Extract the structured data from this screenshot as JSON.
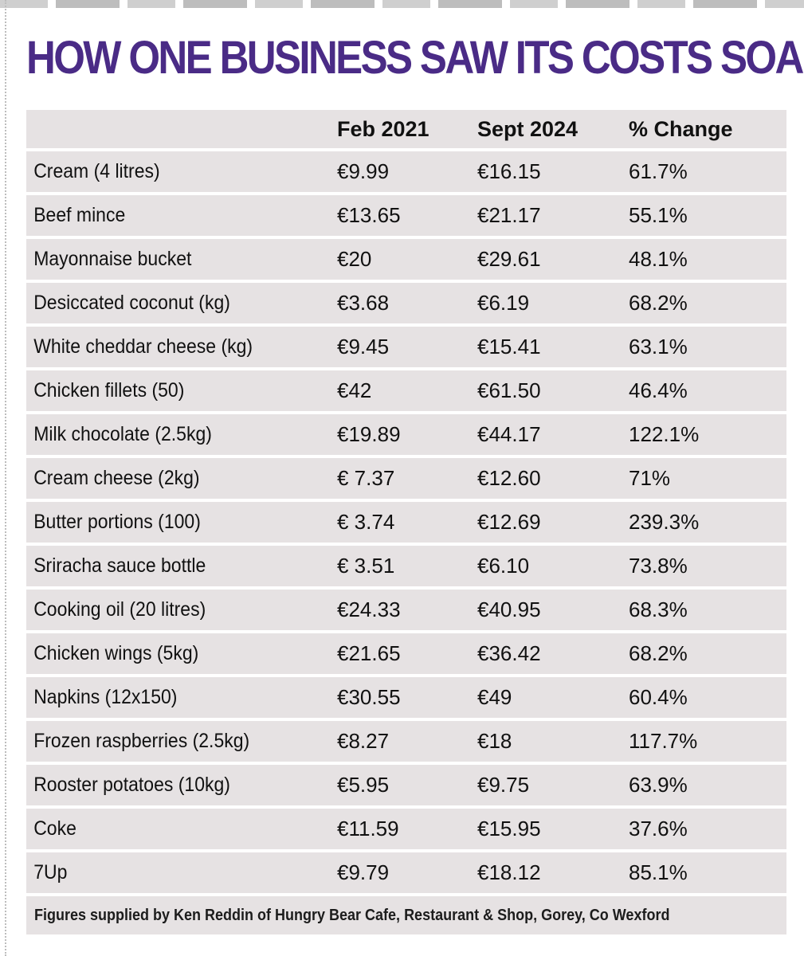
{
  "headline": "HOW ONE BUSINESS SAW ITS COSTS SOAR",
  "columns": {
    "item": "",
    "feb": "Feb 2021",
    "sept": "Sept 2024",
    "change": "% Change"
  },
  "rows": [
    {
      "item": "Cream (4 litres)",
      "feb": "€9.99",
      "sept": "€16.15",
      "change": "61.7%"
    },
    {
      "item": "Beef mince",
      "feb": "€13.65",
      "sept": "€21.17",
      "change": "55.1%"
    },
    {
      "item": "Mayonnaise bucket",
      "feb": "€20",
      "sept": "€29.61",
      "change": "48.1%"
    },
    {
      "item": "Desiccated coconut (kg)",
      "feb": "€3.68",
      "sept": "€6.19",
      "change": "68.2%"
    },
    {
      "item": "White cheddar cheese (kg)",
      "feb": "€9.45",
      "sept": "€15.41",
      "change": "63.1%"
    },
    {
      "item": "Chicken fillets (50)",
      "feb": "€42",
      "sept": "€61.50",
      "change": "46.4%"
    },
    {
      "item": "Milk chocolate (2.5kg)",
      "feb": "€19.89",
      "sept": "€44.17",
      "change": "122.1%"
    },
    {
      "item": "Cream cheese (2kg)",
      "feb": "€ 7.37",
      "sept": "€12.60",
      "change": "71%"
    },
    {
      "item": "Butter portions (100)",
      "feb": "€ 3.74",
      "sept": "€12.69",
      "change": "239.3%"
    },
    {
      "item": "Sriracha sauce bottle",
      "feb": "€ 3.51",
      "sept": "€6.10",
      "change": "73.8%"
    },
    {
      "item": "Cooking oil (20 litres)",
      "feb": "€24.33",
      "sept": "€40.95",
      "change": "68.3%"
    },
    {
      "item": "Chicken wings (5kg)",
      "feb": "€21.65",
      "sept": "€36.42",
      "change": "68.2%"
    },
    {
      "item": "Napkins (12x150)",
      "feb": "€30.55",
      "sept": "€49",
      "change": "60.4%"
    },
    {
      "item": "Frozen raspberries (2.5kg)",
      "feb": "€8.27",
      "sept": "€18",
      "change": "117.7%"
    },
    {
      "item": "Rooster potatoes (10kg)",
      "feb": "€5.95",
      "sept": "€9.75",
      "change": "63.9%"
    },
    {
      "item": "Coke",
      "feb": "€11.59",
      "sept": "€15.95",
      "change": "37.6%"
    },
    {
      "item": "7Up",
      "feb": "€9.79",
      "sept": "€18.12",
      "change": "85.1%"
    }
  ],
  "footer": "Figures supplied by Ken Reddin of Hungry Bear Cafe, Restaurant & Shop, Gorey, Co Wexford",
  "colors": {
    "headline": "#4a2b86",
    "row_background": "#e6e2e3",
    "text": "#111111"
  }
}
